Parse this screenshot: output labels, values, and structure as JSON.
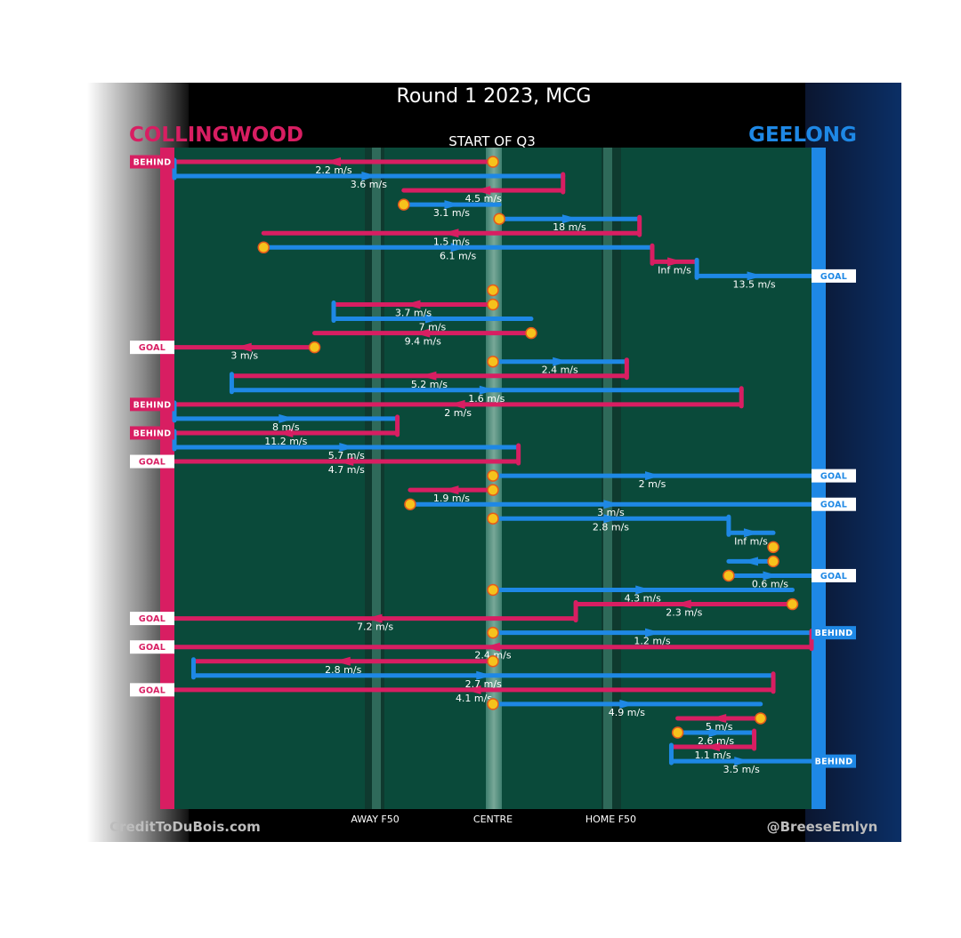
{
  "title": "Round 1 2023, MCG",
  "subtitle": "START OF Q3",
  "teams": {
    "away": {
      "name": "COLLINGWOOD",
      "color": "#d81e62"
    },
    "home": {
      "name": "GEELONG",
      "color": "#1e88e5"
    }
  },
  "credits": {
    "left": "CreditToDuBois.com",
    "right": "@BreeseEmlyn"
  },
  "colors": {
    "field": "#0a4a3a",
    "background_top": "#000000",
    "marker": "#f6c21c",
    "marker_outline": "#e35a1c"
  },
  "chart_data": {
    "type": "possession-chain",
    "x_axis": {
      "description": "ground position from Collingwood goal (0) to Geelong goal (100)",
      "range": [
        0,
        100
      ],
      "tick_labels": [
        {
          "pos": 31.5,
          "label": "AWAY F50"
        },
        {
          "pos": 50,
          "label": "CENTRE"
        },
        {
          "pos": 68.5,
          "label": "HOME F50"
        }
      ]
    },
    "chains": [
      {
        "team": "away",
        "from": 50,
        "to": 0,
        "speed": "2.2 m/s",
        "marker": "start"
      },
      {
        "team": "home",
        "from": 0,
        "to": 61,
        "speed": "3.6 m/s"
      },
      {
        "team": "away",
        "from": 61,
        "to": 36,
        "speed": "4.5 m/s"
      },
      {
        "team": "home",
        "from": 36,
        "to": 51,
        "speed": "3.1 m/s",
        "marker": "start"
      },
      {
        "team": "home",
        "from": 51,
        "to": 73,
        "speed": "18 m/s",
        "marker": "start"
      },
      {
        "team": "away",
        "from": 73,
        "to": 14,
        "speed": "1.5 m/s"
      },
      {
        "team": "home",
        "from": 14,
        "to": 75,
        "speed": "6.1 m/s",
        "marker": "start"
      },
      {
        "team": "away",
        "from": 75,
        "to": 82,
        "speed": "Inf m/s"
      },
      {
        "team": "home",
        "from": 82,
        "to": 100,
        "speed": "13.5 m/s"
      },
      {
        "team": "away",
        "from": 50,
        "to": 50,
        "speed": "",
        "marker": "start"
      },
      {
        "team": "away",
        "from": 50,
        "to": 25,
        "speed": "3.7 m/s",
        "marker": "start"
      },
      {
        "team": "home",
        "from": 25,
        "to": 56,
        "speed": "7 m/s"
      },
      {
        "team": "away",
        "from": 56,
        "to": 22,
        "speed": "9.4 m/s",
        "marker": "start"
      },
      {
        "team": "away",
        "from": 22,
        "to": 0,
        "speed": "3 m/s",
        "marker": "start"
      },
      {
        "team": "home",
        "from": 50,
        "to": 71,
        "speed": "2.4 m/s",
        "marker": "start"
      },
      {
        "team": "away",
        "from": 71,
        "to": 9,
        "speed": "5.2 m/s"
      },
      {
        "team": "home",
        "from": 9,
        "to": 89,
        "speed": "1.6 m/s"
      },
      {
        "team": "away",
        "from": 89,
        "to": 0,
        "speed": "2 m/s"
      },
      {
        "team": "home",
        "from": 0,
        "to": 35,
        "speed": "8 m/s"
      },
      {
        "team": "away",
        "from": 35,
        "to": 0,
        "speed": "11.2 m/s"
      },
      {
        "team": "home",
        "from": 0,
        "to": 54,
        "speed": "5.7 m/s"
      },
      {
        "team": "away",
        "from": 54,
        "to": 0,
        "speed": "4.7 m/s"
      },
      {
        "team": "home",
        "from": 50,
        "to": 100,
        "speed": "2 m/s",
        "marker": "start"
      },
      {
        "team": "away",
        "from": 50,
        "to": 37,
        "speed": "1.9 m/s",
        "marker": "start"
      },
      {
        "team": "home",
        "from": 37,
        "to": 100,
        "speed": "3 m/s",
        "marker": "start"
      },
      {
        "team": "home",
        "from": 50,
        "to": 87,
        "speed": "2.8 m/s",
        "marker": "start"
      },
      {
        "team": "home",
        "from": 87,
        "to": 94,
        "speed": "Inf m/s"
      },
      {
        "team": "away",
        "from": 94,
        "to": 94,
        "speed": "",
        "marker": "start"
      },
      {
        "team": "home",
        "from": 94,
        "to": 87,
        "speed": "",
        "marker": "start"
      },
      {
        "team": "home",
        "from": 87,
        "to": 100,
        "speed": "0.6 m/s",
        "marker": "start"
      },
      {
        "team": "home",
        "from": 50,
        "to": 97,
        "speed": "4.3 m/s",
        "marker": "start"
      },
      {
        "team": "away",
        "from": 97,
        "to": 63,
        "speed": "2.3 m/s",
        "marker": "start"
      },
      {
        "team": "away",
        "from": 63,
        "to": 0,
        "speed": "7.2 m/s"
      },
      {
        "team": "home",
        "from": 50,
        "to": 100,
        "speed": "1.2 m/s",
        "marker": "start"
      },
      {
        "team": "away",
        "from": 100,
        "to": 0,
        "speed": "2.4 m/s"
      },
      {
        "team": "away",
        "from": 50,
        "to": 3,
        "speed": "2.8 m/s",
        "marker": "start"
      },
      {
        "team": "home",
        "from": 3,
        "to": 94,
        "speed": "2.7 m/s"
      },
      {
        "team": "away",
        "from": 94,
        "to": 0,
        "speed": "4.1 m/s"
      },
      {
        "team": "home",
        "from": 50,
        "to": 92,
        "speed": "4.9 m/s",
        "marker": "start"
      },
      {
        "team": "away",
        "from": 92,
        "to": 79,
        "speed": "5 m/s",
        "marker": "start"
      },
      {
        "team": "home",
        "from": 79,
        "to": 91,
        "speed": "2.6 m/s",
        "marker": "start"
      },
      {
        "team": "away",
        "from": 91,
        "to": 78,
        "speed": "1.1 m/s"
      },
      {
        "team": "home",
        "from": 78,
        "to": 100,
        "speed": "3.5 m/s"
      }
    ],
    "outcomes": [
      {
        "side": "away",
        "label": "BEHIND",
        "chain": 0
      },
      {
        "side": "home",
        "label": "GOAL",
        "chain": 8
      },
      {
        "side": "away",
        "label": "GOAL",
        "chain": 13
      },
      {
        "side": "away",
        "label": "BEHIND",
        "chain": 17
      },
      {
        "side": "away",
        "label": "BEHIND",
        "chain": 19
      },
      {
        "side": "away",
        "label": "GOAL",
        "chain": 21
      },
      {
        "side": "home",
        "label": "GOAL",
        "chain": 22
      },
      {
        "side": "home",
        "label": "GOAL",
        "chain": 24
      },
      {
        "side": "home",
        "label": "GOAL",
        "chain": 29
      },
      {
        "side": "away",
        "label": "GOAL",
        "chain": 32
      },
      {
        "side": "home",
        "label": "BEHIND",
        "chain": 33
      },
      {
        "side": "away",
        "label": "GOAL",
        "chain": 34
      },
      {
        "side": "away",
        "label": "GOAL",
        "chain": 37
      },
      {
        "side": "home",
        "label": "BEHIND",
        "chain": 42
      }
    ]
  }
}
